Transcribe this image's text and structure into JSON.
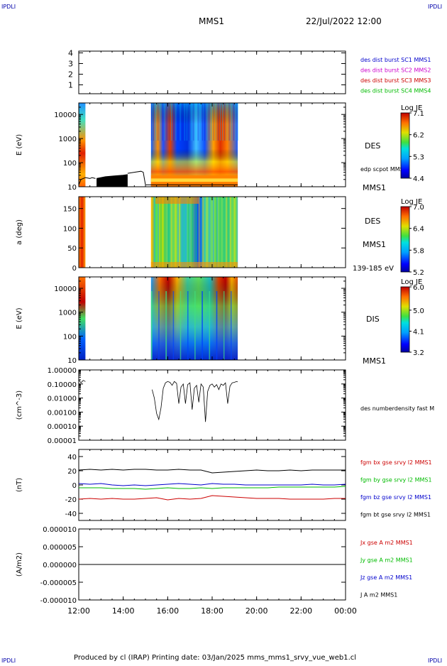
{
  "header": {
    "corner_tl": "IPDLI",
    "corner_tr": "IPDLI",
    "corner_bl": "IPDLI",
    "corner_br": "IPDLI",
    "mission": "MMS1",
    "date": "22/Jul/2022 12:00"
  },
  "footer": {
    "credit": "Produced by cl (IRAP)   Printing date: 03/Jan/2025   mms_mms1_srvy_vue_web1.cl"
  },
  "colors": {
    "blue_label": "#0000cc",
    "magenta_label": "#cc00cc",
    "red_label": "#cc0000",
    "green_label": "#00bb00",
    "black": "#000000",
    "link_blue": "#0000aa"
  },
  "chart_data": [
    {
      "type": "table",
      "id": "burst-availability",
      "ytick_labels": [
        "4",
        "3",
        "2",
        "1"
      ],
      "legend": [
        {
          "label": "des dist burst SC1 MMS1",
          "color": "#0000cc"
        },
        {
          "label": "des dist burst SC2 MMS2",
          "color": "#cc00cc"
        },
        {
          "label": "des dist burst SC3 MMS3",
          "color": "#cc0000"
        },
        {
          "label": "des dist burst SC4 MMS4",
          "color": "#00bb00"
        }
      ]
    },
    {
      "type": "heatmap",
      "id": "des-energy",
      "ylabel": "E (eV)",
      "yscale": "log",
      "ylim": [
        10,
        30000
      ],
      "ytick_labels": [
        "10000",
        "1000",
        "100",
        "10"
      ],
      "ytick_values": [
        10000,
        1000,
        100,
        10
      ],
      "instrument": "DES",
      "overlay_label": "edp scpot MMS1",
      "spacecraft": "MMS1",
      "colorbar": {
        "title": "Log JE",
        "tick_labels": [
          "7.1",
          "6.2",
          "5.3",
          "4.4"
        ],
        "range": [
          4.4,
          7.1
        ]
      },
      "data_intervals_hours": [
        [
          12.0,
          12.3
        ],
        [
          15.25,
          19.15
        ]
      ],
      "scpot_segments": [
        {
          "t": [
            12.0,
            12.1,
            12.3,
            12.5,
            12.6,
            12.75
          ],
          "v": [
            12,
            20,
            24,
            22,
            24,
            22
          ]
        },
        {
          "t": [
            12.8,
            13.2,
            13.6,
            14.0,
            14.2
          ],
          "v": [
            22,
            26,
            28,
            30,
            32
          ]
        },
        {
          "t": [
            14.2,
            14.5,
            14.8,
            14.9,
            15.0,
            15.3,
            15.6,
            15.9,
            16.2,
            16.5,
            16.8,
            17.1,
            17.4,
            17.7,
            18.0,
            18.3,
            18.6,
            18.9,
            19.15
          ],
          "v": [
            36,
            40,
            44,
            40,
            12,
            12,
            12,
            12,
            12,
            12,
            12,
            12,
            12,
            12,
            12,
            12,
            12,
            12,
            12
          ]
        }
      ]
    },
    {
      "type": "heatmap",
      "id": "des-pitch",
      "ylabel": "a (deg)",
      "ylim": [
        0,
        180
      ],
      "ytick_labels": [
        "150",
        "100",
        "50",
        "0"
      ],
      "ytick_values": [
        150,
        100,
        50,
        0
      ],
      "instrument": "DES",
      "spacecraft": "MMS1",
      "energy_range": "139-185 eV",
      "colorbar": {
        "title": "Log JE",
        "tick_labels": [
          "7.0",
          "6.4",
          "5.8",
          "5.2"
        ],
        "range": [
          5.2,
          7.0
        ]
      },
      "data_intervals_hours": [
        [
          12.0,
          12.3
        ],
        [
          15.25,
          19.15
        ]
      ]
    },
    {
      "type": "heatmap",
      "id": "dis-energy",
      "ylabel": "E (eV)",
      "yscale": "log",
      "ylim": [
        10,
        30000
      ],
      "ytick_labels": [
        "10000",
        "1000",
        "100",
        "10"
      ],
      "ytick_values": [
        10000,
        1000,
        100,
        10
      ],
      "instrument": "DIS",
      "spacecraft": "MMS1",
      "colorbar": {
        "title": "Log JE",
        "tick_labels": [
          "6.0",
          "5.0",
          "4.1",
          "3.2"
        ],
        "range": [
          3.2,
          6.0
        ]
      },
      "data_intervals_hours": [
        [
          12.0,
          12.3
        ],
        [
          15.25,
          19.15
        ]
      ]
    },
    {
      "type": "line",
      "id": "density",
      "ylabel": "(cm^-3)",
      "yscale": "log",
      "ylim": [
        1e-05,
        1.0
      ],
      "ytick_labels": [
        "1.00000",
        "0.10000",
        "0.01000",
        "0.00100",
        "0.00010",
        "0.00001"
      ],
      "ytick_values": [
        1.0,
        0.1,
        0.01,
        0.001,
        0.0001,
        1e-05
      ],
      "series_label": "des numberdensity fast M",
      "segments": [
        {
          "t": [
            12.0,
            12.1,
            12.2,
            12.3
          ],
          "v": [
            0.2,
            0.12,
            0.18,
            0.15
          ]
        },
        {
          "t": [
            15.3,
            15.4,
            15.5,
            15.6,
            15.7,
            15.8,
            15.9,
            16.0,
            16.1,
            16.2,
            16.3,
            16.4,
            16.5,
            16.6,
            16.7,
            16.8,
            16.9,
            17.0,
            17.1,
            17.2,
            17.3,
            17.4,
            17.5,
            17.6,
            17.7,
            17.8,
            17.9,
            18.0,
            18.1,
            18.2,
            18.3,
            18.4,
            18.5,
            18.6,
            18.7,
            18.8,
            18.9,
            19.0,
            19.1,
            19.15
          ],
          "v": [
            0.04,
            0.01,
            0.0008,
            0.0003,
            0.002,
            0.05,
            0.12,
            0.15,
            0.13,
            0.08,
            0.15,
            0.11,
            0.004,
            0.06,
            0.1,
            0.004,
            0.09,
            0.12,
            0.0015,
            0.05,
            0.08,
            0.005,
            0.1,
            0.06,
            0.0002,
            0.03,
            0.08,
            0.1,
            0.06,
            0.09,
            0.04,
            0.1,
            0.08,
            0.12,
            0.004,
            0.07,
            0.12,
            0.13,
            0.15,
            0.14
          ]
        }
      ]
    },
    {
      "type": "line",
      "id": "magnetic-field",
      "ylabel": "(nT)",
      "ylim": [
        -50,
        50
      ],
      "ytick_labels": [
        "40",
        "20",
        "0",
        "-20",
        "-40"
      ],
      "ytick_values": [
        40,
        20,
        0,
        -20,
        -40
      ],
      "x": [
        12,
        12.5,
        13,
        13.5,
        14,
        14.5,
        15,
        15.5,
        16,
        16.5,
        17,
        17.5,
        18,
        18.5,
        19,
        19.5,
        20,
        20.5,
        21,
        21.5,
        22,
        22.5,
        23,
        23.5,
        24
      ],
      "series": [
        {
          "name": "fgm bx gse srvy l2 MMS1",
          "color": "#cc0000",
          "values": [
            -20,
            -19,
            -20,
            -19,
            -20,
            -20,
            -19,
            -18,
            -21,
            -19,
            -20,
            -19,
            -15,
            -16,
            -17,
            -18,
            -19,
            -19,
            -19,
            -20,
            -20,
            -20,
            -20,
            -19,
            -19
          ]
        },
        {
          "name": "fgm by gse srvy l2 MMS1",
          "color": "#00bb00",
          "values": [
            -4,
            -4,
            -4,
            -5,
            -5,
            -5,
            -6,
            -5,
            -4,
            -5,
            -5,
            -4,
            -5,
            -4,
            -4,
            -4,
            -4,
            -4,
            -3,
            -3,
            -3,
            -3,
            -3,
            -3,
            -2
          ]
        },
        {
          "name": "fgm bz gse srvy l2 MMS1",
          "color": "#0000cc",
          "values": [
            2,
            1,
            2,
            0,
            -1,
            0,
            -1,
            0,
            1,
            2,
            1,
            0,
            2,
            1,
            1,
            0,
            0,
            0,
            0,
            0,
            0,
            1,
            0,
            0,
            1
          ]
        },
        {
          "name": "fgm bt gse srvy l2 MMS1",
          "color": "#000000",
          "values": [
            21,
            22,
            21,
            22,
            21,
            22,
            22,
            21,
            21,
            22,
            21,
            21,
            17,
            18,
            19,
            20,
            21,
            20,
            20,
            21,
            20,
            21,
            21,
            21,
            21
          ]
        }
      ]
    },
    {
      "type": "line",
      "id": "current-density",
      "ylabel": "(A/m2)",
      "ylim": [
        -1e-05,
        1e-05
      ],
      "ytick_labels": [
        "0.000010",
        "0.000005",
        "0.000000",
        "-0.000005",
        "-0.000010"
      ],
      "ytick_values": [
        1e-05,
        5e-06,
        0,
        -5e-06,
        -1e-05
      ],
      "x": [
        12,
        24
      ],
      "series": [
        {
          "name": "Jx gse A m2 MMS1",
          "color": "#cc0000",
          "values": [
            0,
            0
          ]
        },
        {
          "name": "Jy gse A m2 MMS1",
          "color": "#00bb00",
          "values": [
            0,
            0
          ]
        },
        {
          "name": "Jz gse A m2 MMS1",
          "color": "#0000cc",
          "values": [
            0,
            0
          ]
        },
        {
          "name": "J A m2 MMS1",
          "color": "#000000",
          "values": [
            0,
            0
          ]
        }
      ]
    }
  ],
  "time_axis": {
    "range_hours": [
      12,
      24
    ],
    "tick_hours": [
      12,
      14,
      16,
      18,
      20,
      22,
      24
    ],
    "tick_labels": [
      "12:00",
      "14:00",
      "16:00",
      "18:00",
      "20:00",
      "22:00",
      "00:00"
    ]
  }
}
